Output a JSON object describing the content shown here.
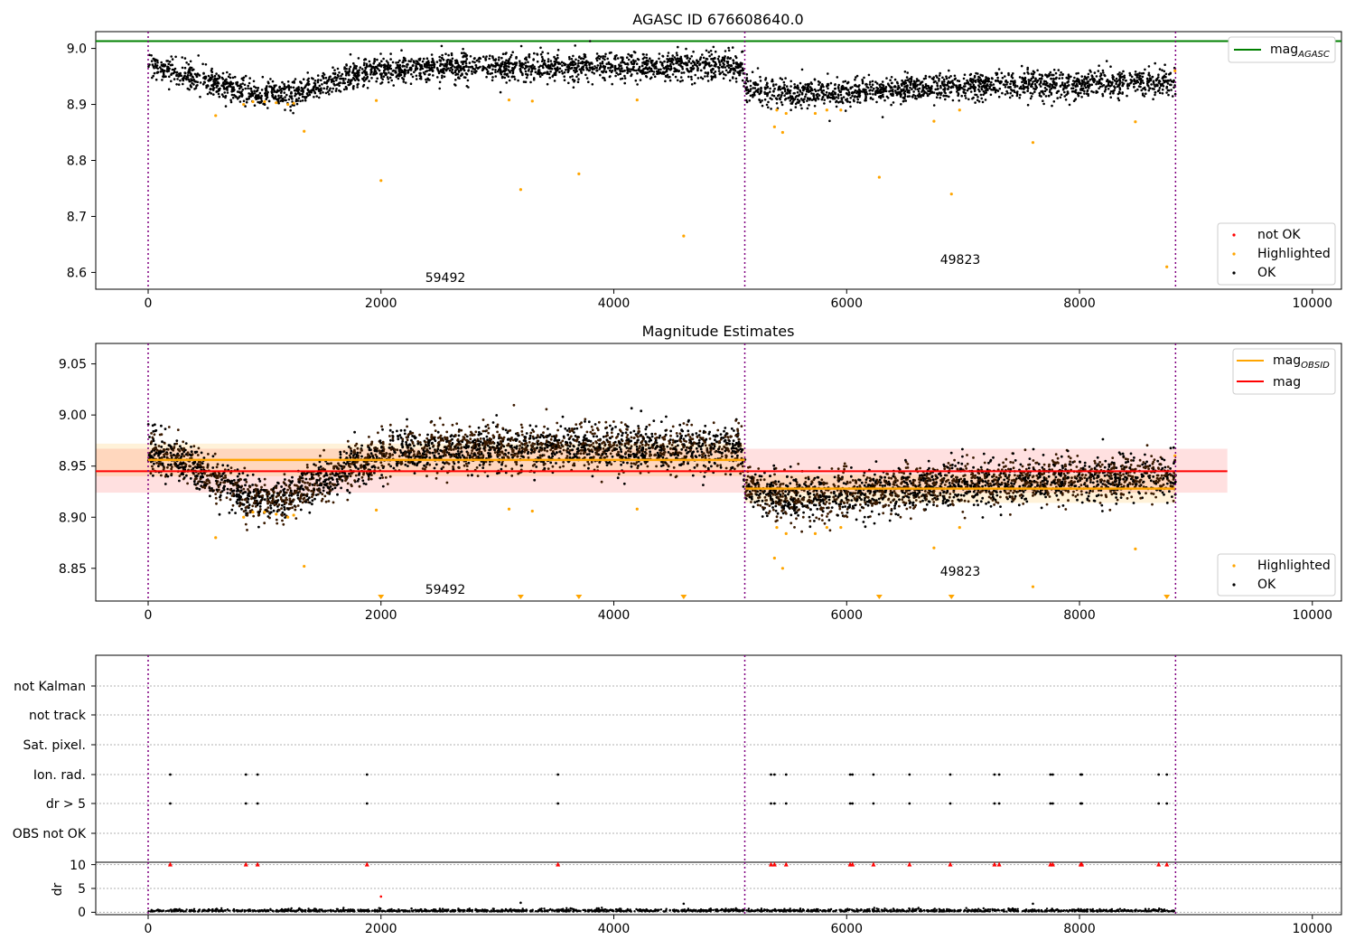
{
  "panels": {
    "top": {
      "title": "AGASC ID 676608640.0",
      "xticks": [
        "0",
        "2000",
        "4000",
        "6000",
        "8000",
        "10000"
      ],
      "yticks": [
        "9.0",
        "8.9",
        "8.8",
        "8.7",
        "8.6"
      ],
      "legend_top": [
        {
          "label": "mag",
          "sub": "AGASC",
          "color": "#008000"
        }
      ],
      "legend_bottom": [
        {
          "label": "not OK",
          "color": "#ff0000"
        },
        {
          "label": "Highlighted",
          "color": "#ffa500"
        },
        {
          "label": "OK",
          "color": "#000000"
        }
      ],
      "annotations": [
        "59492",
        "49823"
      ]
    },
    "middle": {
      "title": "Magnitude Estimates",
      "xticks": [
        "0",
        "2000",
        "4000",
        "6000",
        "8000",
        "10000"
      ],
      "yticks": [
        "9.05",
        "9.00",
        "8.95",
        "8.90",
        "8.85"
      ],
      "legend_top": [
        {
          "label": "mag",
          "sub": "OBSID",
          "color": "#ffa500"
        },
        {
          "label": "mag",
          "sub": "",
          "color": "#ff0000"
        }
      ],
      "legend_bottom": [
        {
          "label": "Highlighted",
          "color": "#ffa500"
        },
        {
          "label": "OK",
          "color": "#000000"
        }
      ],
      "annotations": [
        "59492",
        "49823"
      ]
    },
    "bottom": {
      "flags": [
        "not Kalman",
        "not track",
        "Sat. pixel.",
        "Ion. rad.",
        "dr > 5",
        "OBS not OK"
      ],
      "dr_label": "dr",
      "dr_ticks": [
        "10",
        "5",
        "0"
      ],
      "xticks": [
        "0",
        "2000",
        "4000",
        "6000",
        "8000",
        "10000"
      ]
    }
  },
  "chart_data": [
    {
      "type": "scatter",
      "title": "AGASC ID 676608640.0",
      "xlim": [
        -450,
        10250
      ],
      "ylim": [
        8.57,
        9.03
      ],
      "mag_agasc": 9.013,
      "obsid_boundaries": [
        0,
        5125,
        8825
      ],
      "obsid_labels": [
        {
          "text": "59492",
          "x": 2550,
          "y": 8.59
        },
        {
          "text": "49823",
          "x": 6950,
          "y": 8.62
        }
      ],
      "ok_trend": [
        [
          0,
          8.968
        ],
        [
          300,
          8.955
        ],
        [
          600,
          8.935
        ],
        [
          900,
          8.918
        ],
        [
          1200,
          8.918
        ],
        [
          1500,
          8.935
        ],
        [
          1800,
          8.955
        ],
        [
          2100,
          8.963
        ],
        [
          2500,
          8.967
        ],
        [
          3000,
          8.968
        ],
        [
          3500,
          8.968
        ],
        [
          4000,
          8.968
        ],
        [
          4500,
          8.968
        ],
        [
          5100,
          8.968
        ],
        [
          5130,
          8.93
        ],
        [
          5500,
          8.918
        ],
        [
          6000,
          8.922
        ],
        [
          6500,
          8.928
        ],
        [
          7000,
          8.933
        ],
        [
          7500,
          8.935
        ],
        [
          8000,
          8.937
        ],
        [
          8500,
          8.94
        ],
        [
          8825,
          8.94
        ]
      ],
      "highlighted": [
        [
          580,
          8.88
        ],
        [
          820,
          8.9
        ],
        [
          900,
          8.905
        ],
        [
          1000,
          8.905
        ],
        [
          1100,
          8.903
        ],
        [
          1200,
          8.9
        ],
        [
          1250,
          8.902
        ],
        [
          1340,
          8.852
        ],
        [
          1960,
          8.907
        ],
        [
          2000,
          8.764
        ],
        [
          3100,
          8.908
        ],
        [
          3200,
          8.748
        ],
        [
          3300,
          8.906
        ],
        [
          3700,
          8.776
        ],
        [
          4200,
          8.908
        ],
        [
          4600,
          8.665
        ],
        [
          5380,
          8.86
        ],
        [
          5400,
          8.89
        ],
        [
          5450,
          8.85
        ],
        [
          5480,
          8.884
        ],
        [
          5730,
          8.884
        ],
        [
          5830,
          8.89
        ],
        [
          5950,
          8.89
        ],
        [
          6280,
          8.77
        ],
        [
          6750,
          8.87
        ],
        [
          6900,
          8.74
        ],
        [
          6970,
          8.89
        ],
        [
          7600,
          8.832
        ],
        [
          8480,
          8.869
        ],
        [
          8750,
          8.61
        ],
        [
          8820,
          8.96
        ]
      ],
      "series": [
        {
          "name": "OK"
        },
        {
          "name": "Highlighted"
        },
        {
          "name": "not OK"
        }
      ]
    },
    {
      "type": "scatter",
      "title": "Magnitude Estimates",
      "xlim": [
        -450,
        10250
      ],
      "ylim": [
        8.818,
        9.07
      ],
      "mag": 8.945,
      "mag_band": [
        8.924,
        8.967
      ],
      "mag_obsid": [
        {
          "x": [
            0,
            5125
          ],
          "y": 8.956,
          "band": [
            8.94,
            8.972
          ]
        },
        {
          "x": [
            5125,
            8825
          ],
          "y": 8.928,
          "band": [
            8.914,
            8.942
          ]
        }
      ],
      "highlighted_below": [
        2000,
        3200,
        3700,
        4600,
        6280,
        6900,
        8750
      ]
    },
    {
      "type": "scatter",
      "xlim": [
        -450,
        10250
      ],
      "flag_times": [
        190,
        840,
        940,
        1880,
        3520,
        5350,
        5380,
        5480,
        6030,
        6050,
        6230,
        6540,
        6890,
        7270,
        7310,
        7750,
        7770,
        8010,
        8020,
        8680,
        8750
      ],
      "dr_ylim": [
        -0.5,
        10.5
      ],
      "dr_outliers": [
        [
          2000,
          3.3
        ],
        [
          3200,
          2.0
        ],
        [
          4600,
          1.8
        ],
        [
          7600,
          1.8
        ]
      ]
    }
  ]
}
